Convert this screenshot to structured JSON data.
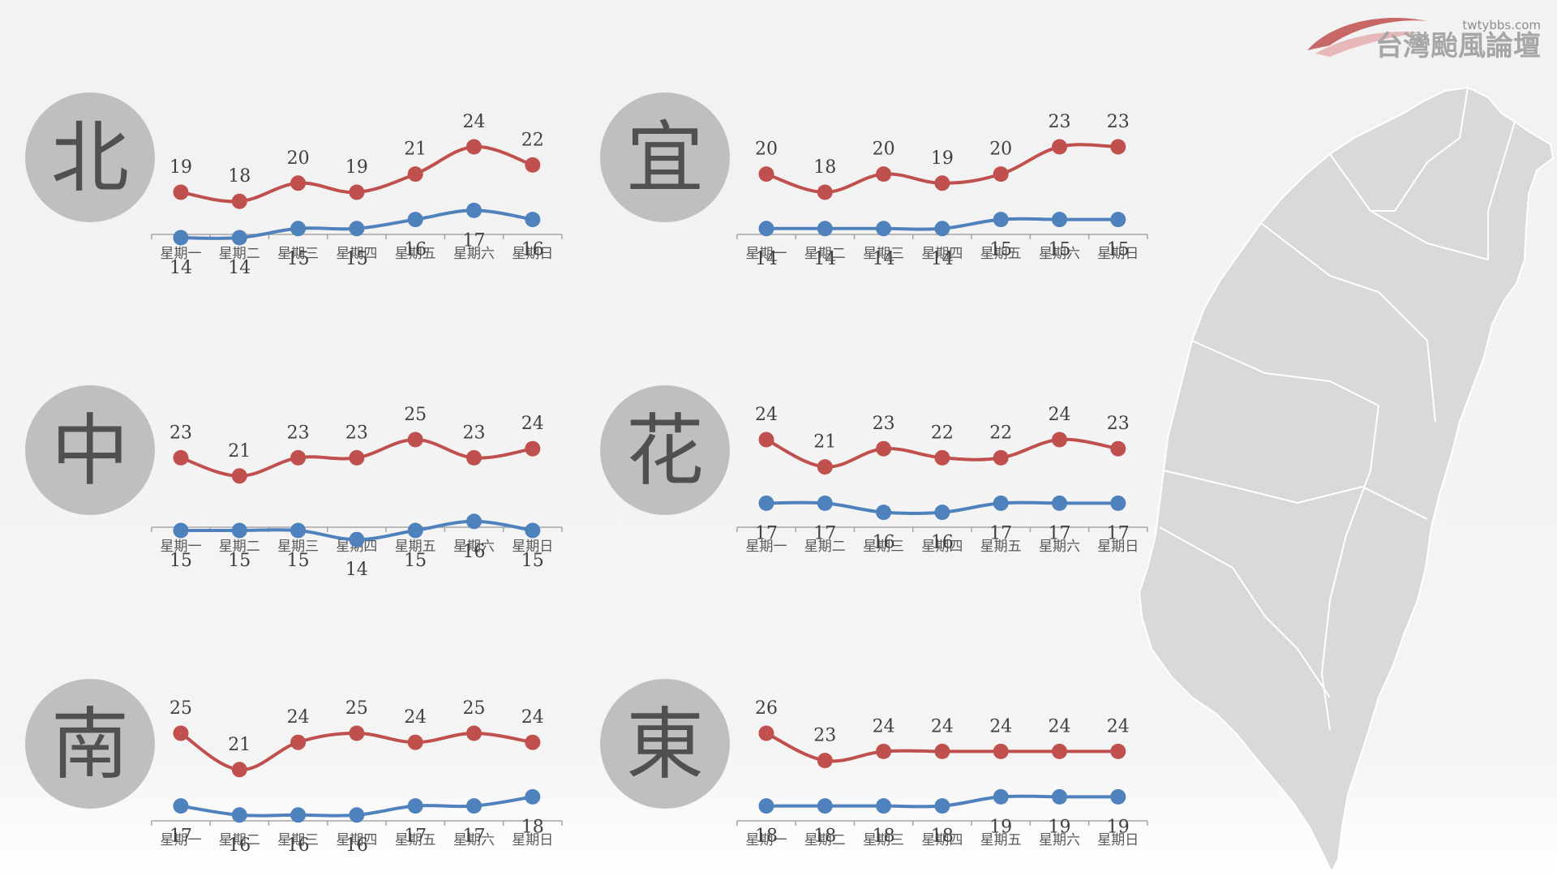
{
  "logo": {
    "text": "台灣颱風論壇",
    "url": "twtybbs.com"
  },
  "colors": {
    "high": "#c0504d",
    "low": "#4f81bd",
    "circle": "#bfbfbf",
    "map": "#d9d9d9"
  },
  "chart_data": [
    {
      "type": "line",
      "region": "北",
      "categories": [
        "星期一",
        "星期二",
        "星期三",
        "星期四",
        "星期五",
        "星期六",
        "星期日"
      ],
      "series": [
        {
          "values": [
            19,
            18,
            20,
            19,
            21,
            24,
            22
          ]
        },
        {
          "values": [
            14,
            14,
            15,
            15,
            16,
            17,
            16
          ]
        }
      ]
    },
    {
      "type": "line",
      "region": "宜",
      "categories": [
        "星期一",
        "星期二",
        "星期三",
        "星期四",
        "星期五",
        "星期六",
        "星期日"
      ],
      "series": [
        {
          "values": [
            20,
            18,
            20,
            19,
            20,
            23,
            23
          ]
        },
        {
          "values": [
            14,
            14,
            14,
            14,
            15,
            15,
            15
          ]
        }
      ]
    },
    {
      "type": "line",
      "region": "中",
      "categories": [
        "星期一",
        "星期二",
        "星期三",
        "星期四",
        "星期五",
        "星期六",
        "星期日"
      ],
      "series": [
        {
          "values": [
            23,
            21,
            23,
            23,
            25,
            23,
            24
          ]
        },
        {
          "values": [
            15,
            15,
            15,
            14,
            15,
            16,
            15
          ]
        }
      ]
    },
    {
      "type": "line",
      "region": "花",
      "categories": [
        "星期一",
        "星期二",
        "星期三",
        "星期四",
        "星期五",
        "星期六",
        "星期日"
      ],
      "series": [
        {
          "values": [
            24,
            21,
            23,
            22,
            22,
            24,
            23
          ]
        },
        {
          "values": [
            17,
            17,
            16,
            16,
            17,
            17,
            17
          ]
        }
      ]
    },
    {
      "type": "line",
      "region": "南",
      "categories": [
        "星期一",
        "星期二",
        "星期三",
        "星期四",
        "星期五",
        "星期六",
        "星期日"
      ],
      "series": [
        {
          "values": [
            25,
            21,
            24,
            25,
            24,
            25,
            24
          ]
        },
        {
          "values": [
            17,
            16,
            16,
            16,
            17,
            17,
            18
          ]
        }
      ]
    },
    {
      "type": "line",
      "region": "東",
      "categories": [
        "星期一",
        "星期二",
        "星期三",
        "星期四",
        "星期五",
        "星期六",
        "星期日"
      ],
      "series": [
        {
          "values": [
            26,
            23,
            24,
            24,
            24,
            24,
            24
          ]
        },
        {
          "values": [
            18,
            18,
            18,
            18,
            19,
            19,
            19
          ]
        }
      ]
    }
  ]
}
